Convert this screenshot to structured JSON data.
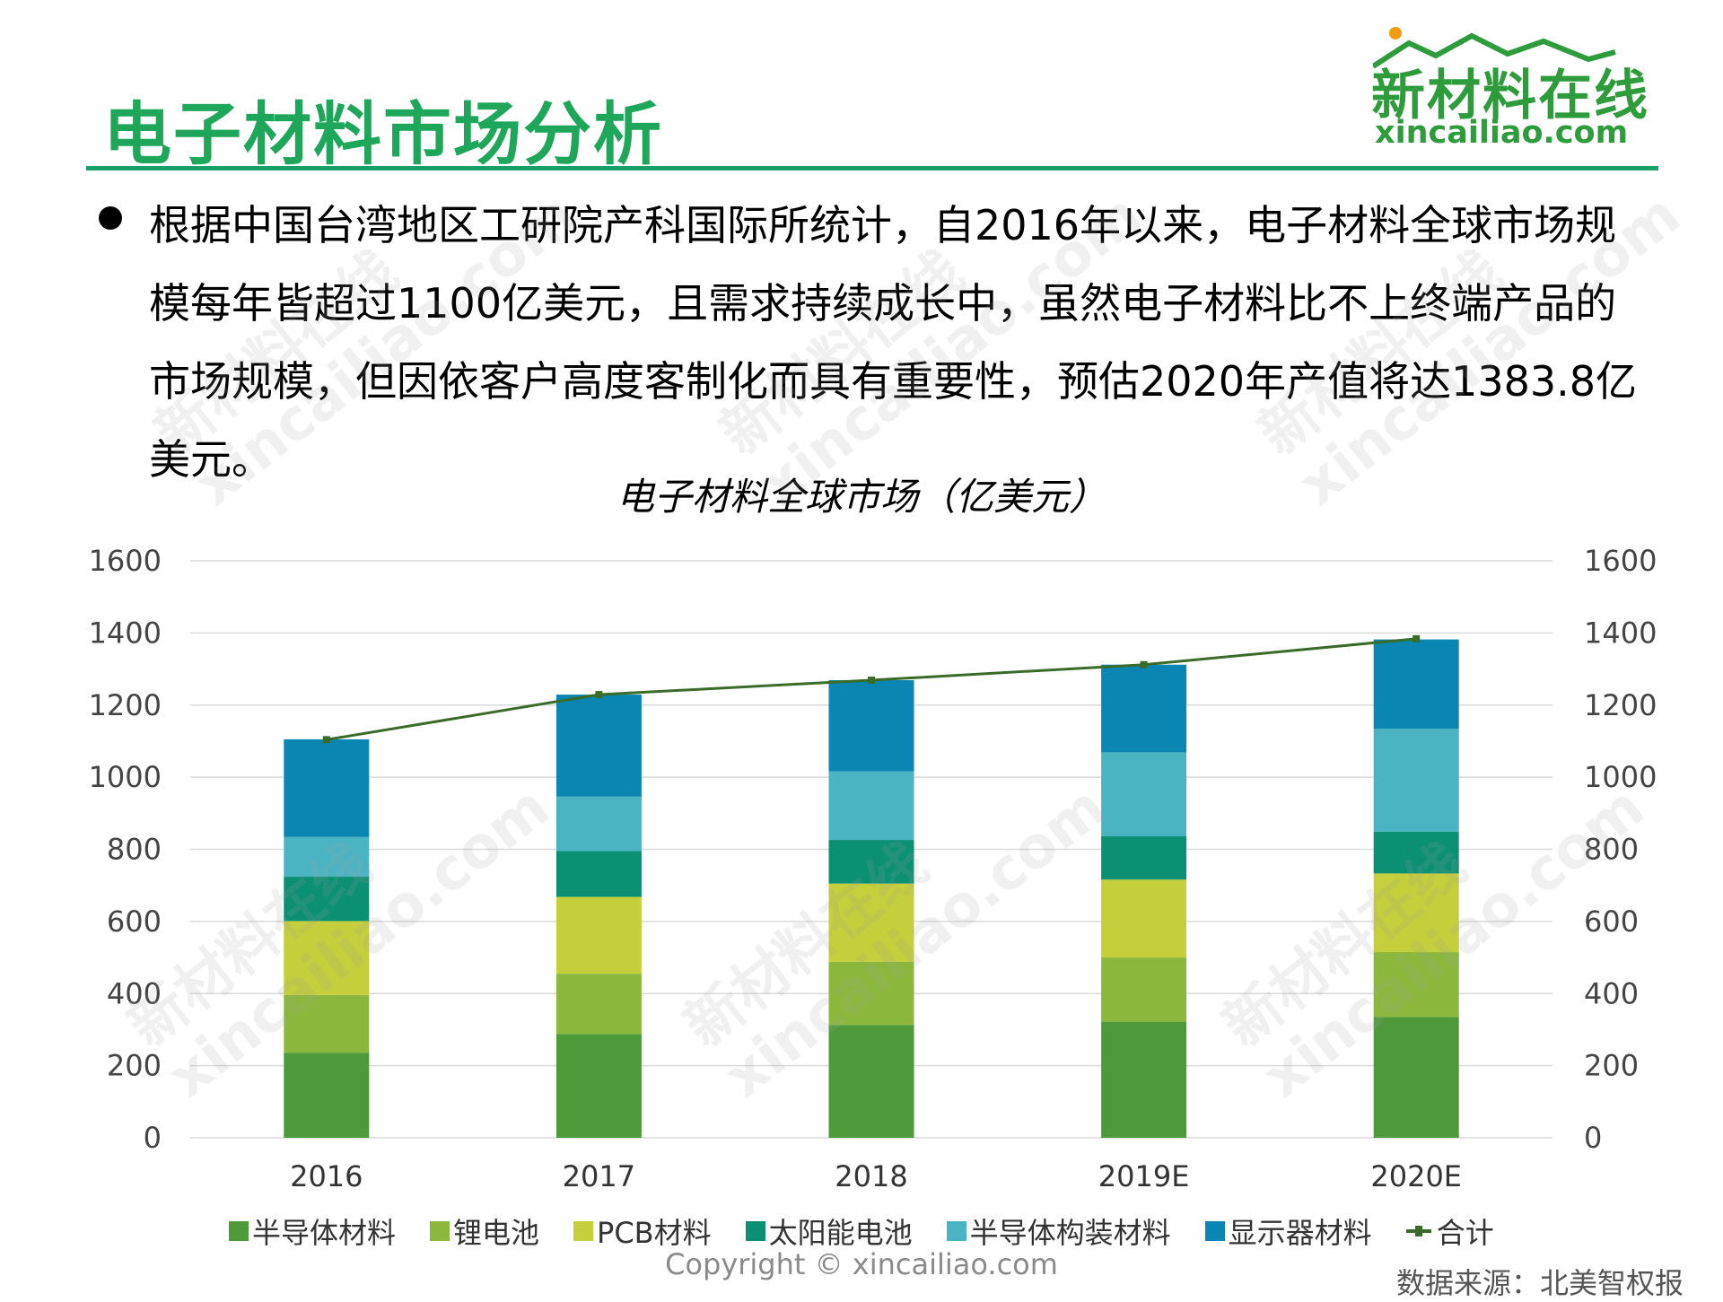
{
  "header": {
    "title": "电子材料市场分析",
    "logo_cn": "新材料在线",
    "logo_url": "xincailiao.com"
  },
  "body": {
    "paragraph": "根据中国台湾地区工研院产科国际所统计，自2016年以来，电子材料全球市场规模每年皆超过1100亿美元，且需求持续成长中，虽然电子材料比不上终端产品的市场规模，但因依客户高度客制化而具有重要性，预估2020年产值将达1383.8亿美元。"
  },
  "chart_data": {
    "type": "bar",
    "stacked": true,
    "title": "电子材料全球市场（亿美元）",
    "categories": [
      "2016",
      "2017",
      "2018",
      "2019E",
      "2020E"
    ],
    "series": [
      {
        "name": "半导体材料",
        "color": "#4e9a3b",
        "values": [
          236,
          288,
          313,
          322,
          335
        ]
      },
      {
        "name": "锂电池",
        "color": "#8bb83c",
        "values": [
          160,
          167,
          175,
          178,
          180
        ]
      },
      {
        "name": "PCB材料",
        "color": "#c5cf3b",
        "values": [
          205,
          213,
          217,
          216,
          218
        ]
      },
      {
        "name": "太阳能电池",
        "color": "#0c9073",
        "values": [
          123,
          127,
          121,
          120,
          116
        ]
      },
      {
        "name": "半导体构装材料",
        "color": "#4bb4c3",
        "values": [
          110,
          151,
          190,
          233,
          285
        ]
      },
      {
        "name": "显示器材料",
        "color": "#0b85b1",
        "values": [
          271,
          283,
          253,
          243,
          248
        ]
      }
    ],
    "total": {
      "name": "合计",
      "color": "#3a6b29",
      "values": [
        1104,
        1229,
        1269,
        1312,
        1383.8
      ]
    },
    "ylim": [
      0,
      1600
    ],
    "yticks": [
      "0",
      "200",
      "400",
      "600",
      "800",
      "1000",
      "1200",
      "1400",
      "1600"
    ],
    "secondary_yticks": [
      "0",
      "200",
      "400",
      "600",
      "800",
      "1000",
      "1200",
      "1400",
      "1600"
    ],
    "legend_position": "bottom",
    "grid": true
  },
  "footer": {
    "copyright": "Copyright © xincailiao.com",
    "source": "数据来源：北美智权报"
  },
  "watermark": {
    "cn": "新材料在线",
    "url": "xincailiao.com"
  }
}
